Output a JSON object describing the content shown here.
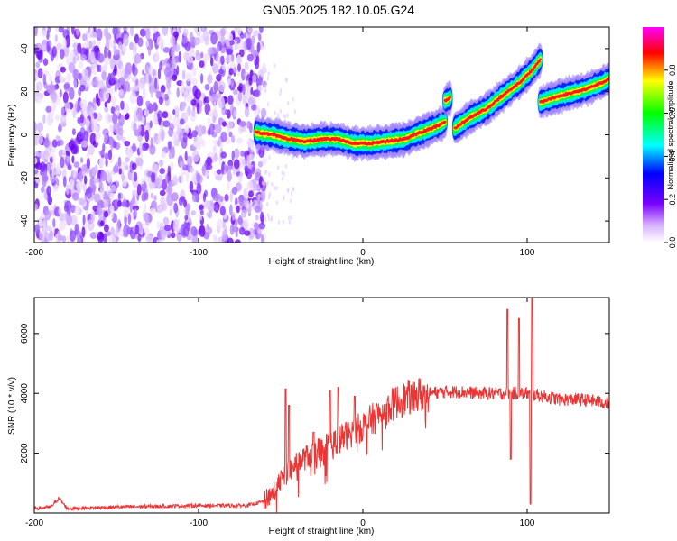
{
  "title": "GN05.2025.182.10.05.G24",
  "chart_data": [
    {
      "type": "heatmap",
      "xlabel": "Height of straight line (km)",
      "ylabel": "Frequency (Hz)",
      "xlim": [
        -200,
        150
      ],
      "ylim": [
        -50,
        50
      ],
      "x_ticks": [
        -200,
        -100,
        0,
        100
      ],
      "y_ticks": [
        -40,
        -20,
        0,
        20,
        40
      ],
      "colorbar": {
        "label": "Normalized spectral amplitude",
        "range": [
          0,
          1
        ],
        "ticks": [
          "0.0",
          "0.2",
          "0.4",
          "0.6",
          "0.8"
        ]
      },
      "noise_region_x": [
        -200,
        -63
      ],
      "ridge": {
        "segments": [
          {
            "x": [
              -65,
              -55,
              -45,
              -35,
              -25,
              -15,
              -5,
              5,
              15,
              25,
              35,
              45,
              50
            ],
            "y": [
              1,
              0,
              -2,
              -3,
              -2,
              -2,
              -4,
              -4,
              -3,
              -2,
              1,
              4,
              6
            ]
          },
          {
            "x": [
              50,
              53
            ],
            "y": [
              16,
              17
            ]
          },
          {
            "x": [
              56,
              65,
              75,
              85,
              95,
              103,
              108
            ],
            "y": [
              3,
              8,
              12,
              18,
              24,
              30,
              35
            ]
          },
          {
            "x": [
              108,
              115,
              125,
              135,
              145,
              150
            ],
            "y": [
              15,
              17,
              19,
              21,
              24,
              26
            ]
          }
        ]
      }
    },
    {
      "type": "line",
      "xlabel": "Height of straight line (km)",
      "ylabel": "SNR (10 * v/v)",
      "xlim": [
        -200,
        150
      ],
      "ylim": [
        0,
        7200
      ],
      "x_ticks": [
        -200,
        -100,
        0,
        100
      ],
      "y_ticks": [
        2000,
        4000,
        6000
      ],
      "color": "#ee3333",
      "envelope": {
        "x": [
          -200,
          -190,
          -185,
          -180,
          -150,
          -100,
          -70,
          -60,
          -55,
          -50,
          -45,
          -40,
          -30,
          -20,
          -10,
          0,
          10,
          20,
          30,
          40,
          50,
          60,
          70,
          80,
          90,
          100,
          110,
          120,
          130,
          140,
          150
        ],
        "y": [
          150,
          200,
          500,
          150,
          200,
          250,
          250,
          400,
          700,
          1100,
          1400,
          1700,
          2000,
          2300,
          2600,
          2900,
          3300,
          3700,
          3900,
          4000,
          4050,
          4050,
          4000,
          4000,
          4000,
          4000,
          3900,
          3800,
          3800,
          3750,
          3650
        ]
      },
      "spikes": [
        {
          "x": -47,
          "y": 4150
        },
        {
          "x": -45,
          "y": 3600
        },
        {
          "x": -30,
          "y": 2700
        },
        {
          "x": -20,
          "y": 4100
        },
        {
          "x": -15,
          "y": 4200
        },
        {
          "x": -5,
          "y": 3900
        },
        {
          "x": 88,
          "y": 6800
        },
        {
          "x": 95,
          "y": 6500
        },
        {
          "x": 103,
          "y": 7200
        },
        {
          "x": 102,
          "y": 300
        },
        {
          "x": 90,
          "y": 1800
        }
      ]
    }
  ]
}
